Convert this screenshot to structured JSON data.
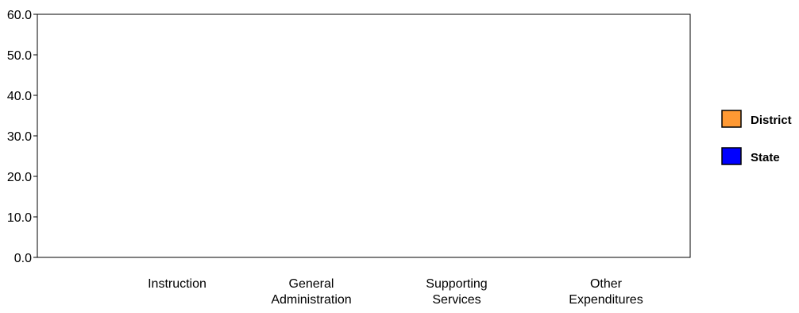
{
  "chart_data": {
    "type": "bar",
    "title": "",
    "xlabel": "",
    "ylabel": "",
    "ylim": [
      0,
      60
    ],
    "yticks": [
      "0.0",
      "10.0",
      "20.0",
      "30.0",
      "40.0",
      "50.0",
      "60.0"
    ],
    "categories": [
      [
        "Instruction"
      ],
      [
        "General",
        "Administration"
      ],
      [
        "Supporting",
        "Services"
      ],
      [
        "Other",
        "Expenditures"
      ]
    ],
    "series": [
      {
        "name": "District",
        "color": "#ff9933",
        "values": [
          0,
          0,
          0,
          0
        ]
      },
      {
        "name": "State",
        "color": "#0000ff",
        "values": [
          0,
          0,
          0,
          0
        ]
      }
    ],
    "legend_position": "right",
    "grid": false
  }
}
